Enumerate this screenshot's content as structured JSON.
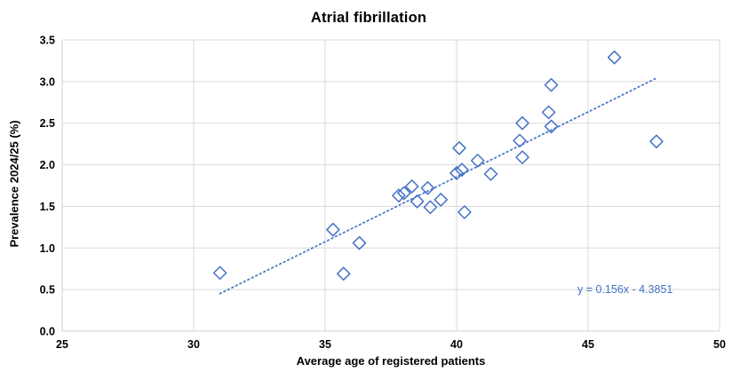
{
  "chart_data": {
    "type": "scatter",
    "title": "Atrial fibrillation",
    "xlabel": "Average age of registered patients",
    "ylabel": "Prevalence 2024/25 (%)",
    "xlim": [
      25,
      50
    ],
    "ylim": [
      0,
      3.5
    ],
    "x_ticks": [
      "25",
      "30",
      "35",
      "40",
      "45",
      "50"
    ],
    "y_ticks": [
      "0.0",
      "0.5",
      "1.0",
      "1.5",
      "2.0",
      "2.5",
      "3.0",
      "3.5"
    ],
    "grid": true,
    "legend": "none",
    "marker_style": "open-diamond",
    "series": [
      {
        "name": "points",
        "points": [
          [
            31.0,
            0.7
          ],
          [
            35.3,
            1.22
          ],
          [
            35.7,
            0.69
          ],
          [
            36.3,
            1.06
          ],
          [
            37.8,
            1.63
          ],
          [
            38.0,
            1.66
          ],
          [
            38.3,
            1.74
          ],
          [
            38.5,
            1.56
          ],
          [
            38.9,
            1.72
          ],
          [
            39.0,
            1.49
          ],
          [
            39.4,
            1.58
          ],
          [
            40.0,
            1.9
          ],
          [
            40.2,
            1.94
          ],
          [
            40.1,
            2.2
          ],
          [
            40.3,
            1.43
          ],
          [
            40.8,
            2.05
          ],
          [
            41.3,
            1.89
          ],
          [
            42.4,
            2.29
          ],
          [
            42.5,
            2.5
          ],
          [
            42.5,
            2.09
          ],
          [
            43.5,
            2.63
          ],
          [
            43.6,
            2.96
          ],
          [
            43.6,
            2.46
          ],
          [
            46.0,
            3.29
          ],
          [
            47.6,
            2.28
          ]
        ]
      }
    ],
    "trendline": {
      "equation": "y = 0.156x - 4.3851",
      "slope": 0.156,
      "intercept": -4.3851,
      "x_start": 31.0,
      "x_end": 47.6,
      "style": "dotted"
    },
    "colors": {
      "marker": "#4472C4",
      "trendline": "#4472C4",
      "equation_text": "#4472C4",
      "gridline": "#D9D9D9",
      "axis_line": "#D0D0D0",
      "text": "#000000",
      "background": "#FFFFFF"
    }
  }
}
